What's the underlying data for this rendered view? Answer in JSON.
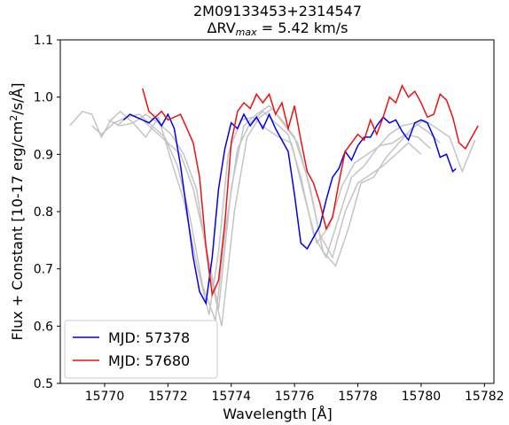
{
  "chart_data": {
    "type": "line",
    "title": "2M09133453+2314547",
    "subtitle_prefix": "ΔRV",
    "subtitle_sub": "max",
    "subtitle_suffix": " = 5.42 km/s",
    "xlabel": "Wavelength [Å]",
    "ylabel_parts": [
      "Flux + Constant [10-17 erg/cm",
      "2",
      "/s/Å]"
    ],
    "xlim": [
      15768.6,
      15782.3
    ],
    "ylim": [
      0.5,
      1.1
    ],
    "xticks": [
      15770,
      15772,
      15774,
      15776,
      15778,
      15780,
      15782
    ],
    "yticks": [
      0.5,
      0.6,
      0.7,
      0.8,
      0.9,
      1.0,
      1.1
    ],
    "ytick_labels": [
      "0.5",
      "0.6",
      "0.7",
      "0.8",
      "0.9",
      "1.0",
      "1.1"
    ],
    "legend_position": "lower-left",
    "colors": {
      "blue": "#0000ee",
      "red": "#ee1111",
      "gray": "#c4c4c4"
    },
    "gray_series": [
      {
        "x": [
          15768.9,
          15769.3,
          15769.6,
          15769.9,
          15770.2,
          15770.5,
          15770.9,
          15771.3,
          15771.7,
          15772.1,
          15772.5,
          15772.9,
          15773.3,
          15773.6,
          15773.9,
          15774.3,
          15774.7,
          15775.1,
          15775.5,
          15775.9,
          15776.3,
          15776.7,
          15777.1,
          15777.5,
          15777.9,
          15778.3,
          15778.7,
          15779.1,
          15779.5,
          15779.9,
          15780.3
        ],
        "y": [
          0.95,
          0.975,
          0.97,
          0.93,
          0.96,
          0.975,
          0.955,
          0.93,
          0.965,
          0.89,
          0.82,
          0.71,
          0.62,
          0.73,
          0.9,
          0.96,
          0.965,
          0.945,
          0.93,
          0.92,
          0.83,
          0.745,
          0.775,
          0.845,
          0.885,
          0.9,
          0.915,
          0.92,
          0.935,
          0.93,
          0.91
        ]
      },
      {
        "x": [
          15769.6,
          15769.9,
          15770.3,
          15770.7,
          15771.1,
          15771.5,
          15771.9,
          15772.3,
          15772.7,
          15773.1,
          15773.5,
          15773.8,
          15774.2,
          15774.6,
          15775.0,
          15775.4,
          15775.8,
          15776.2,
          15776.6,
          15777.0,
          15777.4,
          15777.8,
          15778.2,
          15778.6,
          15779.0,
          15779.4,
          15779.8,
          15780.2,
          15780.6
        ],
        "y": [
          0.95,
          0.935,
          0.955,
          0.965,
          0.97,
          0.95,
          0.93,
          0.88,
          0.79,
          0.67,
          0.61,
          0.76,
          0.91,
          0.955,
          0.975,
          0.955,
          0.935,
          0.86,
          0.76,
          0.72,
          0.79,
          0.86,
          0.88,
          0.91,
          0.935,
          0.95,
          0.955,
          0.94,
          0.92
        ]
      },
      {
        "x": [
          15770.1,
          15770.5,
          15770.9,
          15771.3,
          15771.7,
          15772.1,
          15772.5,
          15772.9,
          15773.3,
          15773.7,
          15774.1,
          15774.5,
          15774.9,
          15775.3,
          15775.7,
          15776.1,
          15776.5,
          15776.9,
          15777.3,
          15777.7,
          15778.1,
          15778.5,
          15778.9,
          15779.3,
          15779.7,
          15780.1,
          15780.5,
          15780.9,
          15781.3,
          15781.7
        ],
        "y": [
          0.96,
          0.95,
          0.955,
          0.97,
          0.955,
          0.935,
          0.9,
          0.84,
          0.7,
          0.6,
          0.8,
          0.93,
          0.965,
          0.98,
          0.95,
          0.92,
          0.84,
          0.73,
          0.705,
          0.77,
          0.85,
          0.86,
          0.895,
          0.92,
          0.945,
          0.96,
          0.945,
          0.93,
          0.87,
          0.925
        ]
      },
      {
        "x": [
          15770.4,
          15770.8,
          15771.2,
          15771.6,
          15772.0,
          15772.4,
          15772.8,
          15773.2,
          15773.6,
          15774.0,
          15774.4,
          15774.8,
          15775.2,
          15775.6,
          15776.0,
          15776.4,
          15776.8,
          15777.2,
          15777.6,
          15778.0,
          15778.4,
          15778.8,
          15779.2,
          15779.6,
          15780.0
        ],
        "y": [
          0.95,
          0.97,
          0.96,
          0.94,
          0.92,
          0.9,
          0.84,
          0.74,
          0.63,
          0.84,
          0.95,
          0.97,
          0.985,
          0.96,
          0.93,
          0.86,
          0.76,
          0.72,
          0.8,
          0.85,
          0.865,
          0.88,
          0.9,
          0.92,
          0.9
        ]
      }
    ],
    "series": [
      {
        "name": "MJD: 57378",
        "color": "blue",
        "x": [
          15770.6,
          15770.8,
          15771.0,
          15771.2,
          15771.4,
          15771.6,
          15771.8,
          15772.0,
          15772.2,
          15772.4,
          15772.6,
          15772.8,
          15773.0,
          15773.2,
          15773.4,
          15773.6,
          15773.8,
          15774.0,
          15774.2,
          15774.4,
          15774.6,
          15774.8,
          15775.0,
          15775.2,
          15775.4,
          15775.6,
          15775.8,
          15776.0,
          15776.2,
          15776.4,
          15776.6,
          15776.8,
          15777.0,
          15777.2,
          15777.4,
          15777.6,
          15777.8,
          15778.0,
          15778.2,
          15778.4,
          15778.6,
          15778.8,
          15779.0,
          15779.2,
          15779.4,
          15779.6,
          15779.8,
          15780.0,
          15780.2,
          15780.4,
          15780.6,
          15780.8,
          15781.0,
          15781.1
        ],
        "y": [
          0.96,
          0.97,
          0.965,
          0.96,
          0.955,
          0.965,
          0.95,
          0.97,
          0.945,
          0.88,
          0.8,
          0.72,
          0.66,
          0.64,
          0.72,
          0.84,
          0.91,
          0.955,
          0.945,
          0.97,
          0.95,
          0.965,
          0.945,
          0.97,
          0.945,
          0.925,
          0.905,
          0.83,
          0.745,
          0.735,
          0.755,
          0.775,
          0.82,
          0.86,
          0.875,
          0.905,
          0.89,
          0.915,
          0.93,
          0.93,
          0.95,
          0.965,
          0.955,
          0.96,
          0.94,
          0.925,
          0.955,
          0.96,
          0.955,
          0.93,
          0.895,
          0.9,
          0.87,
          0.875
        ]
      },
      {
        "name": "MJD: 57680",
        "color": "red",
        "x": [
          15771.2,
          15771.4,
          15771.6,
          15771.8,
          15772.0,
          15772.2,
          15772.4,
          15772.6,
          15772.8,
          15773.0,
          15773.2,
          15773.4,
          15773.6,
          15773.8,
          15774.0,
          15774.2,
          15774.4,
          15774.6,
          15774.8,
          15775.0,
          15775.2,
          15775.4,
          15775.6,
          15775.8,
          15776.0,
          15776.2,
          15776.4,
          15776.6,
          15776.8,
          15777.0,
          15777.2,
          15777.4,
          15777.6,
          15777.8,
          15778.0,
          15778.2,
          15778.4,
          15778.6,
          15778.8,
          15779.0,
          15779.2,
          15779.4,
          15779.6,
          15779.8,
          15780.0,
          15780.2,
          15780.4,
          15780.6,
          15780.8,
          15781.0,
          15781.2,
          15781.4,
          15781.6,
          15781.8
        ],
        "y": [
          1.015,
          0.975,
          0.965,
          0.975,
          0.96,
          0.965,
          0.97,
          0.945,
          0.92,
          0.86,
          0.74,
          0.655,
          0.68,
          0.78,
          0.92,
          0.975,
          0.99,
          0.98,
          1.005,
          0.99,
          1.005,
          0.97,
          0.99,
          0.945,
          0.985,
          0.925,
          0.87,
          0.85,
          0.815,
          0.77,
          0.79,
          0.85,
          0.905,
          0.92,
          0.935,
          0.925,
          0.96,
          0.935,
          0.965,
          1.0,
          0.99,
          1.02,
          1.0,
          1.01,
          0.99,
          0.965,
          0.97,
          1.005,
          0.995,
          0.965,
          0.92,
          0.91,
          0.93,
          0.95
        ]
      }
    ]
  }
}
